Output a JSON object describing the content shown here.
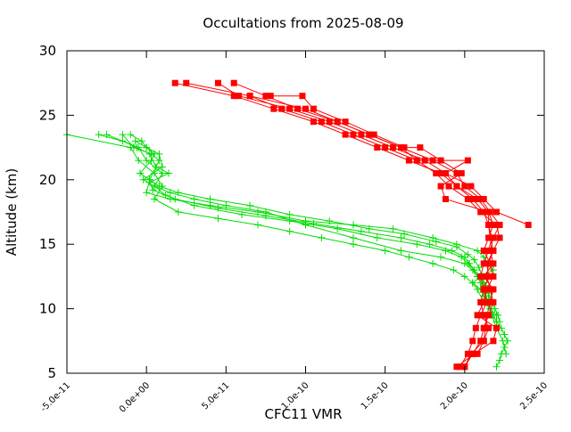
{
  "chart_data": {
    "type": "line",
    "title": "Occultations from 2025-08-09",
    "xlabel": "CFC11 VMR",
    "ylabel": "Altitude (km)",
    "xlim": [
      -5e-11,
      2.5e-10
    ],
    "ylim": [
      5,
      30
    ],
    "x_ticks": [
      {
        "value": -5e-11,
        "label": "-5.0e-11"
      },
      {
        "value": 0,
        "label": "0.0e+00"
      },
      {
        "value": 5e-11,
        "label": "5.0e-11"
      },
      {
        "value": 1e-10,
        "label": "1.0e-10"
      },
      {
        "value": 1.5e-10,
        "label": "1.5e-10"
      },
      {
        "value": 2e-10,
        "label": "2.0e-10"
      },
      {
        "value": 2.5e-10,
        "label": "2.5e-10"
      }
    ],
    "y_ticks": [
      {
        "value": 5,
        "label": "5"
      },
      {
        "value": 10,
        "label": "10"
      },
      {
        "value": 15,
        "label": "15"
      },
      {
        "value": 20,
        "label": "20"
      },
      {
        "value": 25,
        "label": "25"
      },
      {
        "value": 30,
        "label": "30"
      }
    ],
    "grid": false,
    "legend": "none",
    "colors": {
      "red": "#ff0000",
      "green": "#00dd00",
      "axis": "#000000"
    },
    "series": [
      {
        "color": "red",
        "marker": "square",
        "points": [
          [
            1.8e-11,
            27.5
          ],
          [
            5.5e-11,
            26.5
          ],
          [
            8e-11,
            25.5
          ],
          [
            1.05e-10,
            24.5
          ],
          [
            1.25e-10,
            23.5
          ],
          [
            1.45e-10,
            22.5
          ],
          [
            1.65e-10,
            21.5
          ],
          [
            1.85e-10,
            20.5
          ],
          [
            1.95e-10,
            19.5
          ],
          [
            2.05e-10,
            18.5
          ],
          [
            2.12e-10,
            17.5
          ],
          [
            2.15e-10,
            16.5
          ],
          [
            2.17e-10,
            15.5
          ],
          [
            2.15e-10,
            14.5
          ],
          [
            2.12e-10,
            13.5
          ],
          [
            2.1e-10,
            12.5
          ],
          [
            2.12e-10,
            11.5
          ],
          [
            2.14e-10,
            10.5
          ],
          [
            2.1e-10,
            9.5
          ],
          [
            2.07e-10,
            8.5
          ],
          [
            2.05e-10,
            7.5
          ],
          [
            2.02e-10,
            6.5
          ],
          [
            1.97e-10,
            5.5
          ]
        ]
      },
      {
        "color": "red",
        "marker": "square",
        "points": [
          [
            2.5e-11,
            27.5
          ],
          [
            6.5e-11,
            26.5
          ],
          [
            8.5e-11,
            25.5
          ],
          [
            1.1e-10,
            24.5
          ],
          [
            1.3e-10,
            23.5
          ],
          [
            1.5e-10,
            22.5
          ],
          [
            1.7e-10,
            21.5
          ],
          [
            1.82e-10,
            20.5
          ],
          [
            1.9e-10,
            19.5
          ],
          [
            2.02e-10,
            18.5
          ],
          [
            2.1e-10,
            17.5
          ],
          [
            2.2e-10,
            16.5
          ],
          [
            2.22e-10,
            15.5
          ],
          [
            2.18e-10,
            14.5
          ],
          [
            2.15e-10,
            13.5
          ],
          [
            2.14e-10,
            12.5
          ],
          [
            2.16e-10,
            11.5
          ],
          [
            2.18e-10,
            10.5
          ],
          [
            2.15e-10,
            9.5
          ],
          [
            2.12e-10,
            8.5
          ],
          [
            2.1e-10,
            7.5
          ],
          [
            2.05e-10,
            6.5
          ],
          [
            2e-10,
            5.5
          ]
        ]
      },
      {
        "color": "red",
        "marker": "square",
        "points": [
          [
            4.5e-11,
            27.5
          ],
          [
            5.8e-11,
            26.5
          ],
          [
            9e-11,
            25.5
          ],
          [
            1.15e-10,
            24.5
          ],
          [
            1.35e-10,
            23.5
          ],
          [
            1.55e-10,
            22.5
          ],
          [
            1.75e-10,
            21.5
          ],
          [
            1.88e-10,
            20.5
          ],
          [
            1.95e-10,
            19.5
          ],
          [
            2.08e-10,
            18.5
          ],
          [
            2.15e-10,
            17.5
          ],
          [
            2.18e-10,
            16.5
          ],
          [
            2.15e-10,
            15.5
          ],
          [
            2.12e-10,
            14.5
          ],
          [
            2.16e-10,
            13.5
          ],
          [
            2.18e-10,
            12.5
          ],
          [
            2.14e-10,
            11.5
          ],
          [
            2.12e-10,
            10.5
          ],
          [
            2.08e-10,
            9.5
          ],
          [
            2.2e-10,
            8.5
          ],
          [
            2.18e-10,
            7.5
          ],
          [
            2.06e-10,
            6.5
          ],
          [
            1.95e-10,
            5.5
          ]
        ]
      },
      {
        "color": "red",
        "marker": "square",
        "points": [
          [
            5.5e-11,
            27.5
          ],
          [
            7.5e-11,
            26.5
          ],
          [
            9.5e-11,
            25.5
          ],
          [
            1.2e-10,
            24.5
          ],
          [
            1.4e-10,
            23.5
          ],
          [
            1.6e-10,
            22.5
          ],
          [
            1.8e-10,
            21.5
          ],
          [
            1.95e-10,
            20.5
          ],
          [
            2e-10,
            19.5
          ],
          [
            2.1e-10,
            18.5
          ],
          [
            2.16e-10,
            17.5
          ],
          [
            2.22e-10,
            16.5
          ],
          [
            2.18e-10,
            15.5
          ],
          [
            2.16e-10,
            14.5
          ],
          [
            2.18e-10,
            13.5
          ],
          [
            2.12e-10,
            12.5
          ],
          [
            2.18e-10,
            11.5
          ],
          [
            2.16e-10,
            10.5
          ],
          [
            2.14e-10,
            9.5
          ],
          [
            2.13e-10,
            8.5
          ],
          [
            2.12e-10,
            7.5
          ],
          [
            2.08e-10,
            6.5
          ]
        ]
      },
      {
        "color": "red",
        "marker": "square",
        "points": [
          [
            6.5e-11,
            26.5
          ],
          [
            1e-10,
            25.5
          ],
          [
            1.2e-10,
            24.5
          ],
          [
            1.4e-10,
            23.5
          ],
          [
            1.6e-10,
            22.5
          ],
          [
            1.7e-10,
            21.5
          ],
          [
            2.02e-10,
            21.5
          ],
          [
            1.88e-10,
            20.5
          ],
          [
            2.04e-10,
            19.5
          ],
          [
            2.12e-10,
            18.5
          ],
          [
            2.2e-10,
            17.5
          ],
          [
            2.4e-10,
            16.5
          ]
        ]
      },
      {
        "color": "red",
        "marker": "square",
        "points": [
          [
            7.8e-11,
            26.5
          ],
          [
            9.8e-11,
            26.5
          ],
          [
            1.05e-10,
            25.5
          ],
          [
            1.25e-10,
            24.5
          ],
          [
            1.43e-10,
            23.5
          ],
          [
            1.62e-10,
            22.5
          ],
          [
            1.72e-10,
            22.5
          ],
          [
            1.85e-10,
            21.5
          ],
          [
            1.98e-10,
            20.5
          ],
          [
            1.85e-10,
            19.5
          ],
          [
            1.88e-10,
            18.5
          ],
          [
            2.15e-10,
            17.5
          ],
          [
            2.15e-10,
            16.5
          ],
          [
            2.16e-10,
            15.5
          ],
          [
            2.18e-10,
            14.5
          ],
          [
            2.14e-10,
            13.5
          ],
          [
            2.15e-10,
            12.5
          ],
          [
            2.12e-10,
            11.5
          ],
          [
            2.1e-10,
            10.5
          ],
          [
            2.12e-10,
            9.5
          ],
          [
            2.15e-10,
            8.5
          ],
          [
            2.12e-10,
            7.5
          ],
          [
            2.04e-10,
            6.5
          ],
          [
            2e-10,
            5.5
          ]
        ]
      },
      {
        "color": "green",
        "marker": "plus",
        "points": [
          [
            -5e-11,
            23.5
          ],
          [
            -1e-11,
            22.5
          ],
          [
            -5e-12,
            21.5
          ],
          [
            5e-12,
            20.5
          ],
          [
            1e-11,
            19.5
          ],
          [
            5e-12,
            18.5
          ],
          [
            2e-11,
            17.5
          ],
          [
            4.5e-11,
            17
          ],
          [
            7e-11,
            16.5
          ],
          [
            9e-11,
            16
          ],
          [
            1.1e-10,
            15.5
          ],
          [
            1.3e-10,
            15
          ],
          [
            1.5e-10,
            14.5
          ],
          [
            1.65e-10,
            14
          ],
          [
            1.8e-10,
            13.5
          ],
          [
            1.93e-10,
            13
          ],
          [
            2e-10,
            12.5
          ],
          [
            2.05e-10,
            12
          ],
          [
            2.1e-10,
            11.5
          ],
          [
            2.12e-10,
            11
          ],
          [
            2.15e-10,
            10.5
          ],
          [
            2.16e-10,
            10
          ],
          [
            2.18e-10,
            9.5
          ],
          [
            2.2e-10,
            9
          ],
          [
            2.23e-10,
            8.5
          ],
          [
            2.25e-10,
            8
          ],
          [
            2.27e-10,
            7.5
          ],
          [
            2.25e-10,
            7
          ],
          [
            2.23e-10,
            6.5
          ],
          [
            2.22e-10,
            6
          ],
          [
            2.2e-10,
            5.5
          ]
        ]
      },
      {
        "color": "green",
        "marker": "plus",
        "points": [
          [
            -2.5e-11,
            23.5
          ],
          [
            -5e-12,
            22.5
          ],
          [
            0,
            21.5
          ],
          [
            1e-11,
            20.5
          ],
          [
            5e-12,
            19.5
          ],
          [
            1.5e-11,
            19
          ],
          [
            3e-11,
            18.5
          ],
          [
            5e-11,
            18
          ],
          [
            7.5e-11,
            17.5
          ],
          [
            1e-10,
            16.5
          ],
          [
            1.3e-10,
            15.5
          ],
          [
            1.6e-10,
            14.5
          ],
          [
            1.85e-10,
            14
          ],
          [
            2e-10,
            13.5
          ],
          [
            2.05e-10,
            13
          ],
          [
            2.08e-10,
            12.5
          ],
          [
            2.12e-10,
            11.5
          ],
          [
            2.14e-10,
            10.5
          ],
          [
            2.17e-10,
            9.5
          ],
          [
            2.2e-10,
            8.5
          ],
          [
            2.24e-10,
            7.5
          ],
          [
            2.26e-10,
            6.5
          ]
        ]
      },
      {
        "color": "green",
        "marker": "plus",
        "points": [
          [
            -1.5e-11,
            23.5
          ],
          [
            -8e-12,
            22.5
          ],
          [
            3e-12,
            22
          ],
          [
            8e-12,
            21.5
          ],
          [
            2e-12,
            20
          ],
          [
            0,
            19
          ],
          [
            1.5e-11,
            18.5
          ],
          [
            4e-11,
            18
          ],
          [
            7e-11,
            17.5
          ],
          [
            1e-10,
            16.8
          ],
          [
            1.3e-10,
            16.5
          ],
          [
            1.55e-10,
            16.2
          ],
          [
            1.8e-10,
            15.5
          ],
          [
            1.95e-10,
            15
          ],
          [
            2.08e-10,
            14.5
          ],
          [
            2.12e-10,
            14
          ],
          [
            2.15e-10,
            13.5
          ],
          [
            2.18e-10,
            13
          ],
          [
            2.1e-10,
            12.5
          ],
          [
            2.05e-10,
            12
          ],
          [
            2.08e-10,
            11.5
          ],
          [
            2.12e-10,
            10.5
          ],
          [
            2.16e-10,
            10
          ],
          [
            2.2e-10,
            9.5
          ]
        ]
      },
      {
        "color": "green",
        "marker": "plus",
        "points": [
          [
            -1e-11,
            23.5
          ],
          [
            -3e-12,
            23
          ],
          [
            0,
            22.5
          ],
          [
            8e-12,
            22
          ],
          [
            1e-11,
            21
          ],
          [
            -2e-12,
            20
          ],
          [
            5e-12,
            19.5
          ],
          [
            1.2e-11,
            18.8
          ],
          [
            3e-11,
            18
          ],
          [
            6e-11,
            17.3
          ],
          [
            9e-11,
            16.8
          ],
          [
            1.2e-10,
            16.2
          ],
          [
            1.45e-10,
            15.5
          ],
          [
            1.7e-10,
            15
          ],
          [
            1.88e-10,
            14.5
          ],
          [
            1.98e-10,
            14
          ],
          [
            2.02e-10,
            13.5
          ],
          [
            2.06e-10,
            13
          ],
          [
            2.1e-10,
            12.5
          ],
          [
            2.12e-10,
            12
          ],
          [
            2.14e-10,
            11.5
          ],
          [
            2.15e-10,
            11
          ],
          [
            2.17e-10,
            10.5
          ],
          [
            2.19e-10,
            10
          ],
          [
            2.21e-10,
            9.5
          ],
          [
            2.22e-10,
            9
          ]
        ]
      },
      {
        "color": "green",
        "marker": "plus",
        "points": [
          [
            -3e-11,
            23.5
          ],
          [
            -1.5e-11,
            23
          ],
          [
            -6e-12,
            22.5
          ],
          [
            2e-12,
            22
          ],
          [
            6e-12,
            21
          ],
          [
            1.4e-11,
            20.5
          ],
          [
            2e-12,
            19.8
          ],
          [
            4e-12,
            19.2
          ],
          [
            1.8e-11,
            18.5
          ],
          [
            4.5e-11,
            17.8
          ],
          [
            7.5e-11,
            17.2
          ],
          [
            1.05e-10,
            16.6
          ],
          [
            1.35e-10,
            16
          ],
          [
            1.6e-10,
            15.5
          ],
          [
            1.78e-10,
            15
          ],
          [
            1.92e-10,
            14.5
          ],
          [
            2e-10,
            14
          ],
          [
            2.03e-10,
            13.5
          ],
          [
            2.06e-10,
            13
          ],
          [
            2.08e-10,
            12.5
          ],
          [
            2.1e-10,
            12
          ],
          [
            2.12e-10,
            11.5
          ],
          [
            2.15e-10,
            10.5
          ],
          [
            2.18e-10,
            9.5
          ],
          [
            2.2e-10,
            9
          ]
        ]
      },
      {
        "color": "green",
        "marker": "plus",
        "points": [
          [
            -7e-12,
            23
          ],
          [
            0,
            22.5
          ],
          [
            5e-12,
            22
          ],
          [
            3e-12,
            21.5
          ],
          [
            -4e-12,
            20.5
          ],
          [
            2e-12,
            20
          ],
          [
            8e-12,
            19.5
          ],
          [
            2e-11,
            19
          ],
          [
            4e-11,
            18.5
          ],
          [
            6.5e-11,
            18
          ],
          [
            9e-11,
            17.3
          ],
          [
            1.15e-10,
            16.8
          ],
          [
            1.4e-10,
            16.2
          ],
          [
            1.62e-10,
            15.8
          ],
          [
            1.82e-10,
            15.2
          ],
          [
            1.95e-10,
            14.8
          ],
          [
            2.02e-10,
            14.2
          ],
          [
            2.06e-10,
            13.8
          ],
          [
            2.09e-10,
            13.2
          ],
          [
            2.11e-10,
            12.5
          ],
          [
            2.13e-10,
            11.8
          ],
          [
            2.15e-10,
            11.2
          ],
          [
            2.17e-10,
            10.5
          ]
        ]
      }
    ]
  }
}
